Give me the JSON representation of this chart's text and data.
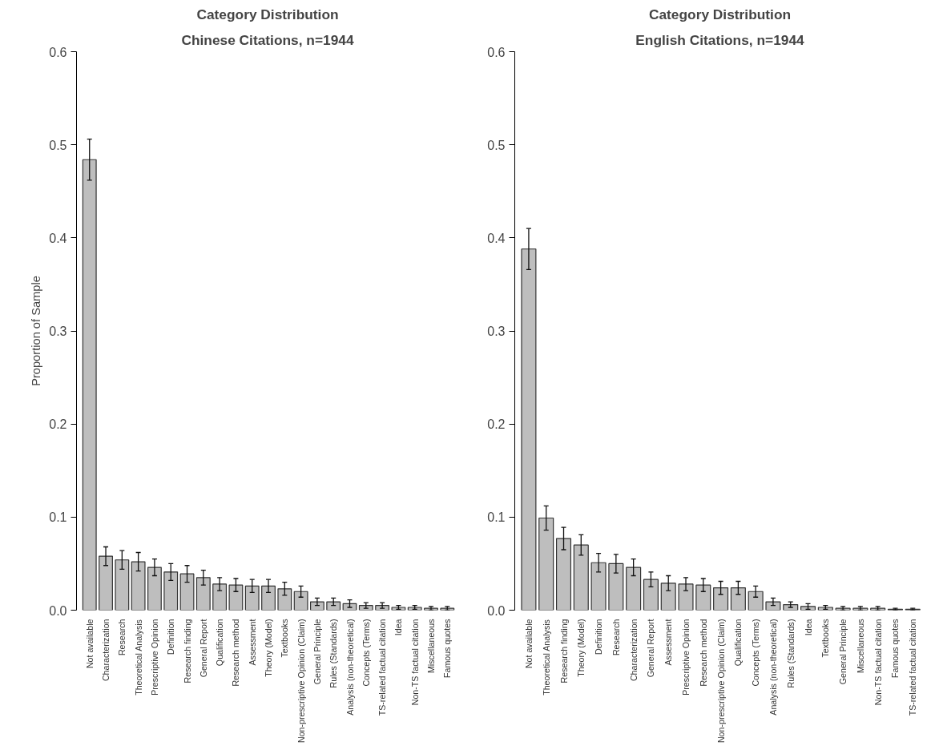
{
  "chart_data": [
    {
      "type": "bar",
      "title": "Category Distribution",
      "subtitle": "Chinese Citations, n=1944",
      "ylabel": "Proportion of Sample",
      "categories": [
        "Not available",
        "Characterization",
        "Research",
        "Theoretical Analysis",
        "Prescriptive Opinion",
        "Definition",
        "Research finding",
        "General Report",
        "Qualification",
        "Research method",
        "Assessment",
        "Theory (Model)",
        "Textbooks",
        "Non-prescriptive Opinion (Claim)",
        "General Principle",
        "Rules (Standards)",
        "Analysis (non-theoretical)",
        "Concepts (Terms)",
        "TS-related factual citation",
        "Idea",
        "Non-TS factual citation",
        "Miscellaneous",
        "Famous quotes"
      ],
      "values": [
        0.484,
        0.058,
        0.054,
        0.052,
        0.046,
        0.041,
        0.039,
        0.035,
        0.028,
        0.027,
        0.026,
        0.026,
        0.023,
        0.02,
        0.009,
        0.009,
        0.007,
        0.005,
        0.005,
        0.003,
        0.003,
        0.002,
        0.002
      ],
      "errors": [
        0.022,
        0.01,
        0.01,
        0.01,
        0.009,
        0.009,
        0.009,
        0.008,
        0.007,
        0.007,
        0.007,
        0.007,
        0.007,
        0.006,
        0.004,
        0.004,
        0.004,
        0.003,
        0.003,
        0.002,
        0.002,
        0.002,
        0.002
      ],
      "color": "#bebebe",
      "ylim": [
        0,
        0.6
      ],
      "yticks": [
        {
          "value": 0,
          "label": "0.0"
        },
        0.1,
        0.2,
        0.3,
        0.4,
        0.5,
        0.6
      ]
    },
    {
      "type": "bar",
      "title": "Category Distribution",
      "subtitle": "English Citations, n=1944",
      "categories": [
        "Not available",
        "Theoretical Analysis",
        "Research finding",
        "Theory (Model)",
        "Definition",
        "Research",
        "Characterization",
        "General Report",
        "Assessment",
        "Prescriptive Opinion",
        "Research method",
        "Non-prescriptive Opinion (Claim)",
        "Qualification",
        "Concepts (Terms)",
        "Analysis (non-theoretical)",
        "Rules (Standards)",
        "Idea",
        "Textbooks",
        "General Principle",
        "Miscellaneous",
        "Non-TS factual citation",
        "Famous quotes",
        "TS-related factual citation"
      ],
      "values": [
        0.388,
        0.099,
        0.077,
        0.07,
        0.051,
        0.05,
        0.046,
        0.033,
        0.029,
        0.028,
        0.027,
        0.024,
        0.024,
        0.02,
        0.009,
        0.006,
        0.004,
        0.003,
        0.002,
        0.002,
        0.002,
        0.001,
        0.001
      ],
      "errors": [
        0.022,
        0.013,
        0.012,
        0.011,
        0.01,
        0.01,
        0.009,
        0.008,
        0.008,
        0.007,
        0.007,
        0.007,
        0.007,
        0.006,
        0.004,
        0.003,
        0.003,
        0.002,
        0.002,
        0.002,
        0.002,
        0.001,
        0.001
      ],
      "color": "#bebebe",
      "ylim": [
        0,
        0.6
      ],
      "yticks": [
        {
          "value": 0,
          "label": "0.0"
        },
        0.1,
        0.2,
        0.3,
        0.4,
        0.5,
        0.6
      ]
    }
  ]
}
